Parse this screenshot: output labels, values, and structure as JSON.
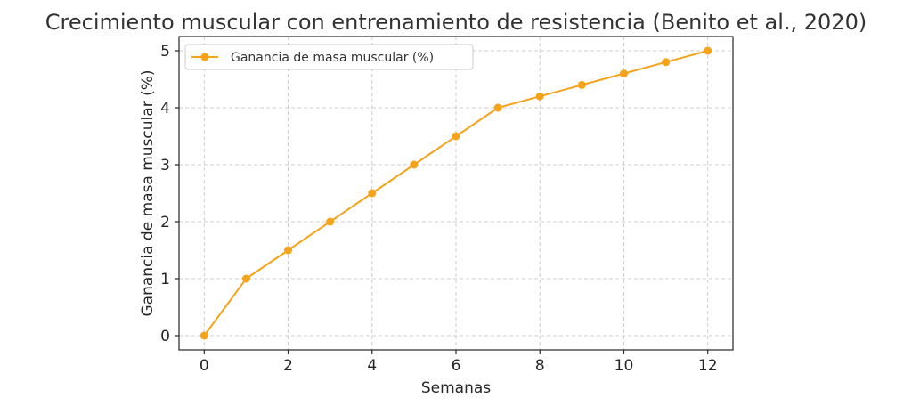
{
  "chart_data": {
    "type": "line",
    "title": "Crecimiento muscular con entrenamiento de resistencia (Benito et al., 2020)",
    "xlabel": "Semanas",
    "ylabel": "Ganancia de masa muscular (%)",
    "xlim": [
      -0.6,
      12.6
    ],
    "ylim": [
      -0.25,
      5.25
    ],
    "xticks": [
      0,
      2,
      4,
      6,
      8,
      10,
      12
    ],
    "yticks": [
      0,
      1,
      2,
      3,
      4,
      5
    ],
    "grid": true,
    "legend_position": "top-left",
    "series": [
      {
        "name": "Ganancia de masa muscular (%)",
        "color": "#f5a31a",
        "marker": "circle",
        "x": [
          0,
          1,
          2,
          3,
          4,
          5,
          6,
          7,
          8,
          9,
          10,
          11,
          12
        ],
        "y": [
          0,
          1,
          1.5,
          2,
          2.5,
          3,
          3.5,
          4,
          4.2,
          4.4,
          4.6,
          4.8,
          5
        ]
      }
    ]
  }
}
